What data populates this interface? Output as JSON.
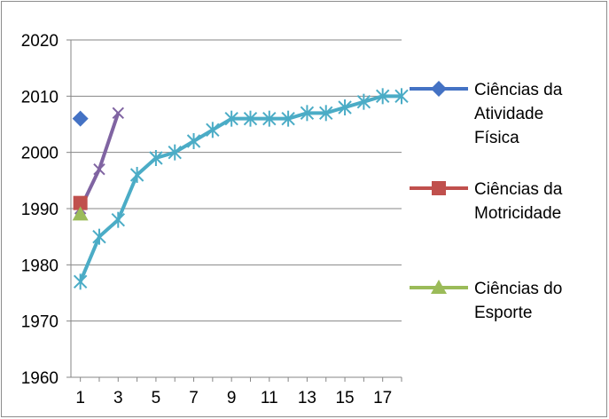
{
  "chart_data": {
    "type": "line",
    "title": "",
    "xlabel": "",
    "ylabel": "",
    "ylim": [
      1960,
      2020
    ],
    "xlim": [
      0.5,
      18
    ],
    "y_ticks": [
      1960,
      1970,
      1980,
      1990,
      2000,
      2010,
      2020
    ],
    "x_ticks": [
      1,
      3,
      5,
      7,
      9,
      11,
      13,
      15,
      17
    ],
    "grid": "horizontal",
    "legend_position": "right",
    "series": [
      {
        "name": "Ciências da Atividade Física",
        "legend_lines": [
          "Ciências da",
          "Atividade",
          "Física"
        ],
        "color": "#4472c4",
        "marker": "diamond",
        "line": false,
        "x": [
          1
        ],
        "y": [
          2006
        ]
      },
      {
        "name": "Ciências da Motricidade",
        "legend_lines": [
          "Ciências da",
          "Motricidade"
        ],
        "color": "#c0504d",
        "marker": "square",
        "line": false,
        "x": [
          1
        ],
        "y": [
          1991
        ]
      },
      {
        "name": "Ciências do Esporte",
        "legend_lines": [
          "Ciências do",
          "Esporte"
        ],
        "color": "#9bbb59",
        "marker": "triangle",
        "line": false,
        "x": [
          1
        ],
        "y": [
          1989
        ]
      },
      {
        "name": "",
        "color": "#8064a2",
        "marker": "x",
        "line": true,
        "x": [
          1,
          2,
          3
        ],
        "y": [
          1990,
          1997,
          2007
        ]
      },
      {
        "name": "",
        "color": "#4bacc6",
        "marker": "asterisk",
        "line": true,
        "x": [
          1,
          2,
          3,
          4,
          5,
          6,
          7,
          8,
          9,
          10,
          11,
          12,
          13,
          14,
          15,
          16,
          17,
          18
        ],
        "y": [
          1977,
          1985,
          1988,
          1996,
          1999,
          2000,
          2002,
          2004,
          2006,
          2006,
          2006,
          2006,
          2007,
          2007,
          2008,
          2009,
          2010,
          2010
        ]
      }
    ]
  }
}
